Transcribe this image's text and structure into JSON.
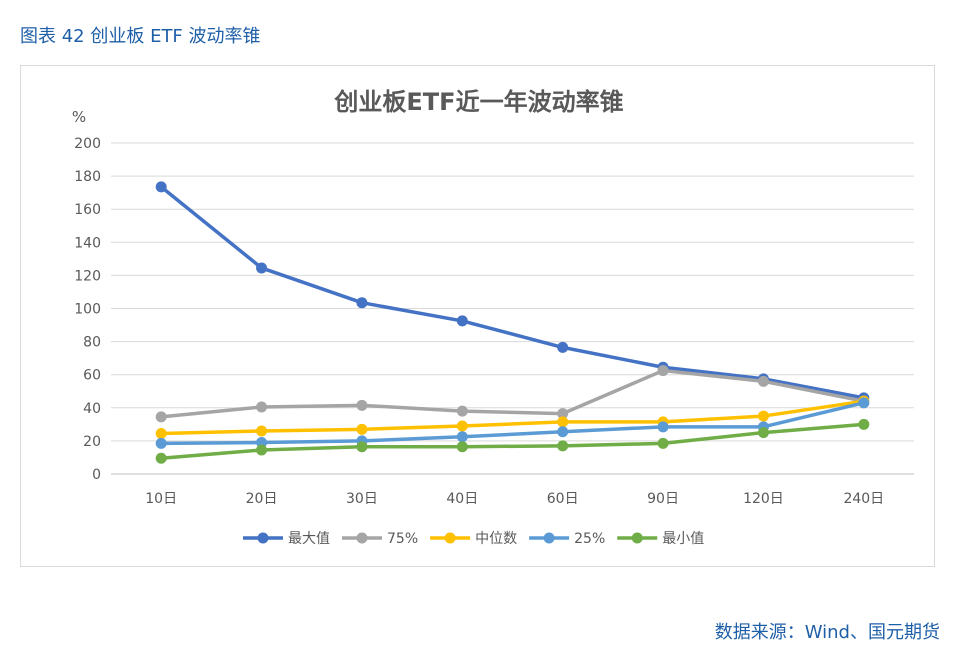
{
  "caption": "图表 42 创业板 ETF 波动率锥",
  "source": "数据来源：Wind、国元期货",
  "chart_data": {
    "type": "line",
    "title": "创业板ETF近一年波动率锥",
    "ylabel": "%",
    "xlabel": "",
    "ylim": [
      0,
      200
    ],
    "yticks": [
      0,
      20,
      40,
      60,
      80,
      100,
      120,
      140,
      160,
      180,
      200
    ],
    "categories": [
      "10日",
      "20日",
      "30日",
      "40日",
      "60日",
      "90日",
      "120日",
      "240日"
    ],
    "grid": true,
    "legend_position": "bottom",
    "series": [
      {
        "name": "最大值",
        "color": "#4472c4",
        "values": [
          173.5,
          124.5,
          103.5,
          92.5,
          76.5,
          64.5,
          57.5,
          46
        ]
      },
      {
        "name": "75%",
        "color": "#a5a5a5",
        "values": [
          34.5,
          40.5,
          41.5,
          38,
          36.5,
          62.5,
          56,
          44
        ]
      },
      {
        "name": "中位数",
        "color": "#ffc000",
        "values": [
          24.5,
          26,
          27,
          29,
          31.5,
          31.5,
          35,
          44
        ]
      },
      {
        "name": "25%",
        "color": "#5b9bd5",
        "values": [
          18.5,
          19,
          20,
          22.5,
          25.5,
          28.5,
          28.5,
          43
        ]
      },
      {
        "name": "最小值",
        "color": "#70ad47",
        "values": [
          9.5,
          14.5,
          16.5,
          16.5,
          17,
          18.5,
          25,
          30
        ]
      }
    ]
  }
}
